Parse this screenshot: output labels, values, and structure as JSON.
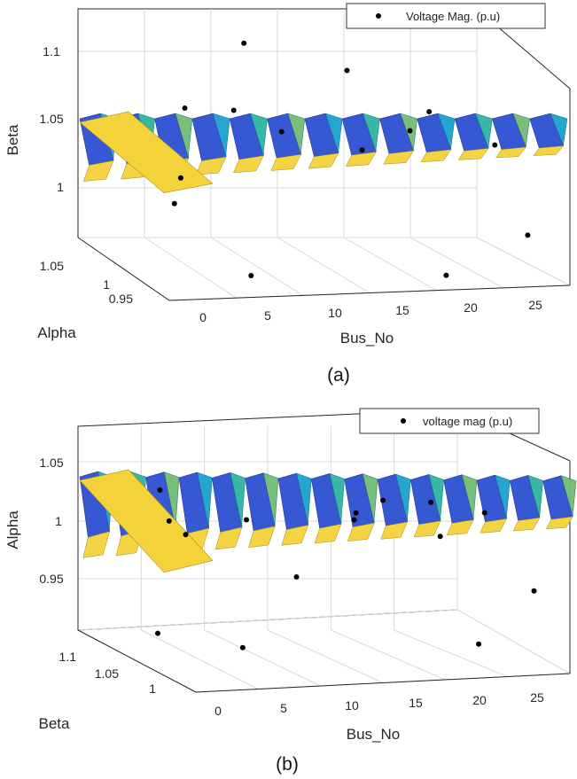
{
  "chart_data": [
    {
      "type": "scatter",
      "title": "",
      "caption": "(a)",
      "xlabel": "Bus_No",
      "ylabel": "Alpha",
      "zlabel": "Beta",
      "xticks": [
        "0",
        "5",
        "10",
        "15",
        "20",
        "25"
      ],
      "yticks": [
        "0.95",
        "1",
        "1.05"
      ],
      "zticks": [
        "1",
        "1.05",
        "1.1"
      ],
      "xlim": [
        0,
        28
      ],
      "ylim": [
        0.95,
        1.05
      ],
      "zlim": [
        0.96,
        1.12
      ],
      "surface": true,
      "grid": true,
      "legend_position": "top-right",
      "series": [
        {
          "name": "Voltage Mag. (p.u)",
          "marker": "dot",
          "x": [
            1,
            3,
            4,
            7,
            9,
            11,
            13,
            15,
            18,
            20,
            22,
            24,
            26,
            27
          ],
          "y": [
            0.96,
            0.98,
            1.0,
            0.97,
            1.02,
            1.04,
            1.03,
            0.99,
            1.02,
            0.96,
            1.03,
            1.04,
            1.0,
            0.98
          ],
          "z": [
            1.03,
            1.09,
            1.03,
            0.97,
            1.07,
            1.11,
            1.05,
            1.11,
            1.04,
            0.97,
            1.05,
            1.06,
            1.05,
            0.99
          ]
        }
      ]
    },
    {
      "type": "scatter",
      "title": "",
      "caption": "(b)",
      "xlabel": "Bus_No",
      "ylabel": "Beta",
      "zlabel": "Alpha",
      "xticks": [
        "0",
        "5",
        "10",
        "15",
        "20",
        "25"
      ],
      "yticks": [
        "1",
        "1.05",
        "1.1"
      ],
      "zticks": [
        "0.95",
        "1",
        "1.05"
      ],
      "xlim": [
        0,
        28
      ],
      "ylim": [
        0.97,
        1.12
      ],
      "zlim": [
        0.9,
        1.08
      ],
      "surface": true,
      "grid": true,
      "legend_position": "top-right",
      "series": [
        {
          "name": "voltage mag (p.u)",
          "marker": "dot",
          "x": [
            1,
            2,
            3,
            5,
            7,
            9,
            11,
            13,
            16,
            18,
            20,
            21,
            24,
            25,
            27
          ],
          "y": [
            1.0,
            1.05,
            1.07,
            1.09,
            1.03,
            1.06,
            1.03,
            0.99,
            1.04,
            1.04,
            1.0,
            1.03,
            1.02,
            1.03,
            1.0
          ],
          "z": [
            1.03,
            1.05,
            0.92,
            1.01,
            0.92,
            1.02,
            0.98,
            1.04,
            1.03,
            1.04,
            1.02,
            1.04,
            0.92,
            1.03,
            0.97
          ]
        }
      ]
    }
  ]
}
